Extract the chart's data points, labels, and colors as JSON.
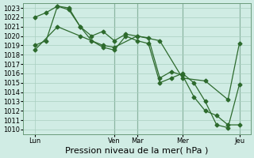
{
  "title": "Pression niveau de la mer( hPa )",
  "background_color": "#d0ece4",
  "grid_color": "#a8cfc0",
  "line_color": "#2d6a2d",
  "ylim": [
    1009.5,
    1023.5
  ],
  "yticks": [
    1010,
    1011,
    1012,
    1013,
    1014,
    1015,
    1016,
    1017,
    1018,
    1019,
    1020,
    1021,
    1022,
    1023
  ],
  "xlim": [
    -0.5,
    9.5
  ],
  "day_labels": [
    "Lun",
    "Ven",
    "Mar",
    "Mer",
    "Jeu"
  ],
  "day_positions": [
    0,
    3.5,
    4.5,
    6.5,
    9.0
  ],
  "vline_positions": [
    3.5,
    4.5,
    6.5,
    9.0
  ],
  "lines": [
    {
      "x": [
        0,
        0.5,
        1.0,
        1.5,
        2.0,
        2.5,
        3.0,
        3.5,
        4.0,
        4.5,
        5.0,
        5.5,
        6.0,
        6.5,
        7.0,
        7.5,
        8.0,
        8.5,
        9.0
      ],
      "y": [
        1022.0,
        1022.5,
        1023.2,
        1022.8,
        1021.0,
        1020.0,
        1020.5,
        1019.5,
        1020.2,
        1020.0,
        1019.8,
        1015.5,
        1016.2,
        1015.8,
        1013.5,
        1012.0,
        1011.5,
        1010.5,
        1010.5
      ],
      "marker": "D",
      "ms": 2.5
    },
    {
      "x": [
        0,
        0.5,
        1.0,
        1.5,
        2.0,
        2.5,
        3.0,
        3.5,
        4.0,
        4.5,
        5.0,
        5.5,
        6.0,
        6.5,
        7.0,
        7.5,
        8.0,
        8.5,
        9.0
      ],
      "y": [
        1019.0,
        1019.5,
        1023.2,
        1023.0,
        1021.0,
        1019.5,
        1018.8,
        1018.5,
        1020.0,
        1019.5,
        1019.2,
        1015.0,
        1015.5,
        1016.0,
        1015.0,
        1013.0,
        1010.5,
        1010.2,
        1014.8
      ],
      "marker": "D",
      "ms": 2.5
    },
    {
      "x": [
        0,
        1.0,
        2.0,
        3.0,
        3.5,
        4.5,
        5.5,
        6.5,
        7.5,
        8.5,
        9.0
      ],
      "y": [
        1018.5,
        1021.0,
        1020.0,
        1019.0,
        1018.8,
        1020.0,
        1019.5,
        1015.5,
        1015.2,
        1013.2,
        1019.2
      ],
      "marker": "D",
      "ms": 2.5
    }
  ],
  "title_fontsize": 8,
  "tick_fontsize": 6
}
